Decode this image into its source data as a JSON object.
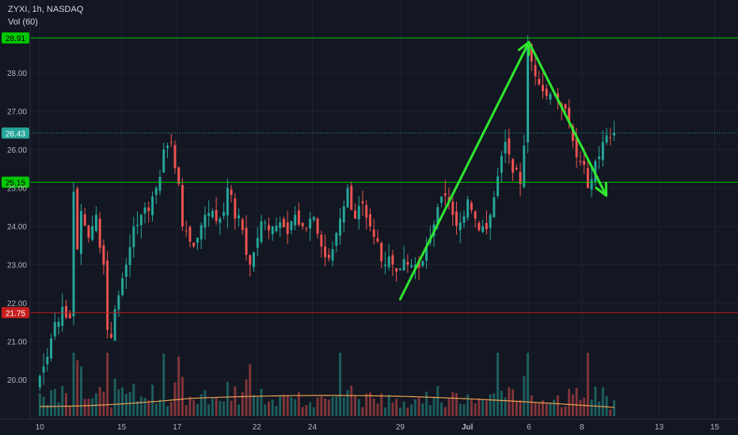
{
  "header": {
    "symbol_line": "ZYXI, 1h, NASDAQ",
    "indicator": "Vol (60)"
  },
  "colors": {
    "up": "#26a69a",
    "down": "#ef5350",
    "resistance": "#00c800",
    "support": "#c81e1e",
    "arrow": "#2ee82e",
    "ma": "#f0a050",
    "bg": "#131722"
  },
  "chart_data": {
    "type": "candlestick",
    "symbol": "ZYXI",
    "interval": "1h",
    "exchange": "NASDAQ",
    "ylim": [
      19.5,
      29.3
    ],
    "y_ticks": [
      "20.00",
      "21.00",
      "22.00",
      "23.00",
      "24.00",
      "25.00",
      "26.00",
      "27.00",
      "28.00"
    ],
    "x_ticks": [
      "10",
      "15",
      "17",
      "22",
      "24",
      "29",
      "Jul",
      "6",
      "8",
      "13",
      "15"
    ],
    "horizontal_levels": [
      {
        "label": "28.91",
        "value": 28.91,
        "color": "#00c800"
      },
      {
        "label": "26.43",
        "value": 26.43,
        "color": "#26a69a",
        "style": "dotted"
      },
      {
        "label": "25.15",
        "value": 25.15,
        "color": "#00c800"
      },
      {
        "label": "21.75",
        "value": 21.75,
        "color": "#c81e1e"
      }
    ],
    "annotation_arrows": [
      {
        "from": {
          "x": 96.0,
          "y": 22.1
        },
        "to": {
          "x": 130.3,
          "y": 28.8
        }
      },
      {
        "from": {
          "x": 130.3,
          "y": 28.8
        },
        "to": {
          "x": 150.9,
          "y": 24.8
        }
      }
    ],
    "session_ticks": [
      {
        "label": "10",
        "x": 0
      },
      {
        "label": "15",
        "x": 21.8
      },
      {
        "label": "17",
        "x": 36.6
      },
      {
        "label": "22",
        "x": 57.8
      },
      {
        "label": "24",
        "x": 72.6
      },
      {
        "label": "29",
        "x": 96.0
      },
      {
        "label": "Jul",
        "x": 113.9
      },
      {
        "label": "6",
        "x": 130.3
      },
      {
        "label": "8",
        "x": 144.4
      },
      {
        "label": "13",
        "x": 165.0
      },
      {
        "label": "15",
        "x": 179.8
      }
    ],
    "x_range": [
      -2.6,
      186.0
    ],
    "anchors": [
      [
        0,
        20.1
      ],
      [
        2,
        20.6
      ],
      [
        4,
        21.5
      ],
      [
        6,
        21.9
      ],
      [
        8,
        21.6
      ],
      [
        9,
        24.9
      ],
      [
        10,
        23.4
      ],
      [
        11,
        24.4
      ],
      [
        13,
        23.7
      ],
      [
        15,
        24.3
      ],
      [
        17,
        23.0
      ],
      [
        18,
        21.3
      ],
      [
        19,
        21.1
      ],
      [
        21,
        22.2
      ],
      [
        23,
        23.0
      ],
      [
        25,
        24.0
      ],
      [
        27,
        24.3
      ],
      [
        29,
        24.4
      ],
      [
        31,
        25.0
      ],
      [
        33,
        26.0
      ],
      [
        35,
        26.2
      ],
      [
        37,
        25.1
      ],
      [
        38,
        24.0
      ],
      [
        40,
        23.6
      ],
      [
        42,
        23.7
      ],
      [
        44,
        24.3
      ],
      [
        46,
        24.4
      ],
      [
        48,
        24.2
      ],
      [
        50,
        25.0
      ],
      [
        52,
        24.2
      ],
      [
        54,
        23.9
      ],
      [
        56,
        23.0
      ],
      [
        58,
        23.7
      ],
      [
        60,
        24.1
      ],
      [
        62,
        24.0
      ],
      [
        64,
        24.1
      ],
      [
        66,
        23.8
      ],
      [
        68,
        24.3
      ],
      [
        70,
        24.0
      ],
      [
        72,
        24.2
      ],
      [
        74,
        23.8
      ],
      [
        76,
        23.2
      ],
      [
        78,
        23.4
      ],
      [
        80,
        24.2
      ],
      [
        82,
        25.0
      ],
      [
        84,
        24.2
      ],
      [
        86,
        24.6
      ],
      [
        88,
        24.0
      ],
      [
        90,
        23.6
      ],
      [
        92,
        23.0
      ],
      [
        94,
        23.0
      ],
      [
        96,
        22.9
      ],
      [
        98,
        23.0
      ],
      [
        100,
        23.0
      ],
      [
        102,
        23.1
      ],
      [
        104,
        23.7
      ],
      [
        106,
        24.5
      ],
      [
        108,
        24.8
      ],
      [
        110,
        24.3
      ],
      [
        112,
        24.1
      ],
      [
        114,
        24.7
      ],
      [
        116,
        24.2
      ],
      [
        118,
        24.0
      ],
      [
        120,
        24.3
      ],
      [
        122,
        25.3
      ],
      [
        124,
        26.2
      ],
      [
        126,
        25.4
      ],
      [
        128,
        25.1
      ],
      [
        129,
        26.1
      ],
      [
        130,
        28.7
      ],
      [
        131,
        28.3
      ],
      [
        133,
        27.7
      ],
      [
        135,
        27.4
      ],
      [
        137,
        27.5
      ],
      [
        139,
        27.1
      ],
      [
        141,
        26.7
      ],
      [
        143,
        25.8
      ],
      [
        145,
        25.6
      ],
      [
        146,
        25.0
      ],
      [
        148,
        25.7
      ],
      [
        150,
        26.2
      ],
      [
        152,
        26.3
      ],
      [
        153,
        26.43
      ]
    ],
    "volume_ma_level": 0.55
  }
}
